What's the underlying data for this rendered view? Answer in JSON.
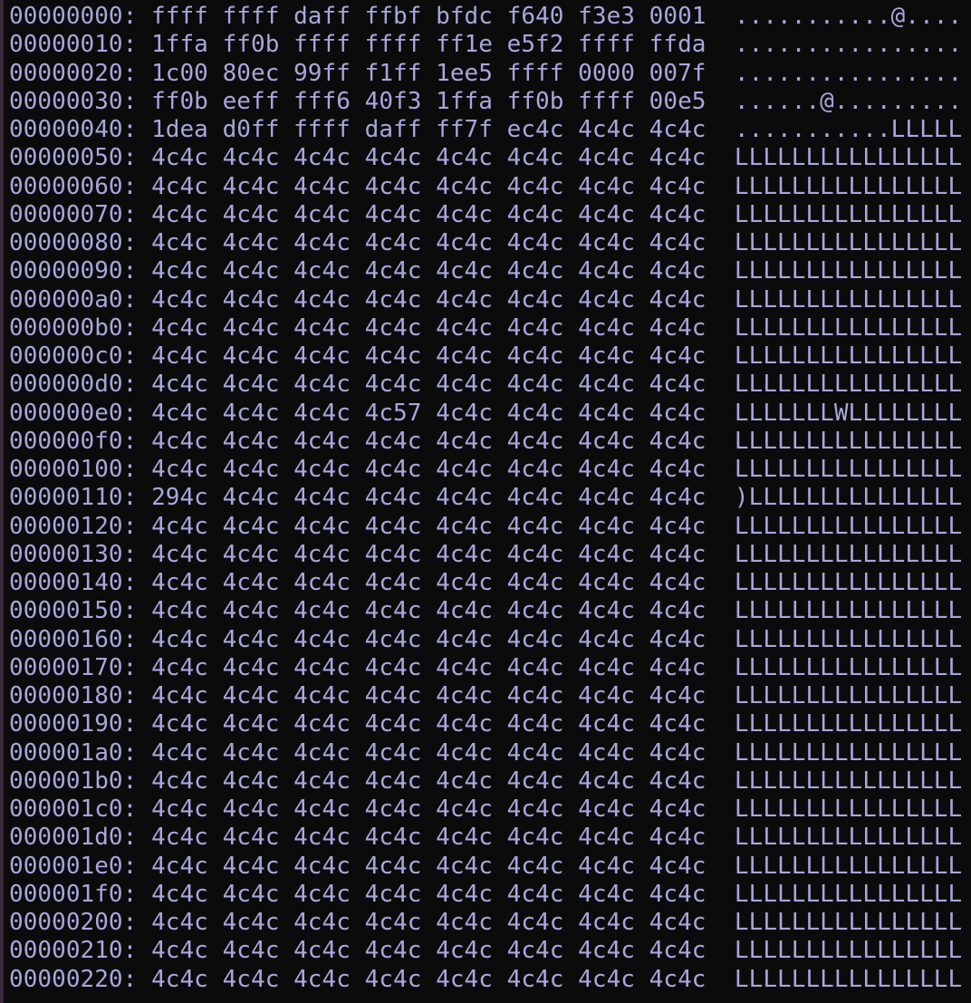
{
  "terminal": {
    "colors": {
      "background": "#0b0b0c",
      "text": "#a9a6dc"
    },
    "lines": [
      {
        "offset": "00000000:",
        "hex": "ffff ffff daff ffbf bfdc f640 f3e3 0001",
        "ascii": "...........@...."
      },
      {
        "offset": "00000010:",
        "hex": "1ffa ff0b ffff ffff ff1e e5f2 ffff ffda",
        "ascii": "................"
      },
      {
        "offset": "00000020:",
        "hex": "1c00 80ec 99ff f1ff 1ee5 ffff 0000 007f",
        "ascii": "................"
      },
      {
        "offset": "00000030:",
        "hex": "ff0b eeff fff6 40f3 1ffa ff0b ffff 00e5",
        "ascii": "......@........."
      },
      {
        "offset": "00000040:",
        "hex": "1dea d0ff ffff daff ff7f ec4c 4c4c 4c4c",
        "ascii": "...........LLLLL"
      },
      {
        "offset": "00000050:",
        "hex": "4c4c 4c4c 4c4c 4c4c 4c4c 4c4c 4c4c 4c4c",
        "ascii": "LLLLLLLLLLLLLLLL"
      },
      {
        "offset": "00000060:",
        "hex": "4c4c 4c4c 4c4c 4c4c 4c4c 4c4c 4c4c 4c4c",
        "ascii": "LLLLLLLLLLLLLLLL"
      },
      {
        "offset": "00000070:",
        "hex": "4c4c 4c4c 4c4c 4c4c 4c4c 4c4c 4c4c 4c4c",
        "ascii": "LLLLLLLLLLLLLLLL"
      },
      {
        "offset": "00000080:",
        "hex": "4c4c 4c4c 4c4c 4c4c 4c4c 4c4c 4c4c 4c4c",
        "ascii": "LLLLLLLLLLLLLLLL"
      },
      {
        "offset": "00000090:",
        "hex": "4c4c 4c4c 4c4c 4c4c 4c4c 4c4c 4c4c 4c4c",
        "ascii": "LLLLLLLLLLLLLLLL"
      },
      {
        "offset": "000000a0:",
        "hex": "4c4c 4c4c 4c4c 4c4c 4c4c 4c4c 4c4c 4c4c",
        "ascii": "LLLLLLLLLLLLLLLL"
      },
      {
        "offset": "000000b0:",
        "hex": "4c4c 4c4c 4c4c 4c4c 4c4c 4c4c 4c4c 4c4c",
        "ascii": "LLLLLLLLLLLLLLLL"
      },
      {
        "offset": "000000c0:",
        "hex": "4c4c 4c4c 4c4c 4c4c 4c4c 4c4c 4c4c 4c4c",
        "ascii": "LLLLLLLLLLLLLLLL"
      },
      {
        "offset": "000000d0:",
        "hex": "4c4c 4c4c 4c4c 4c4c 4c4c 4c4c 4c4c 4c4c",
        "ascii": "LLLLLLLLLLLLLLLL"
      },
      {
        "offset": "000000e0:",
        "hex": "4c4c 4c4c 4c4c 4c57 4c4c 4c4c 4c4c 4c4c",
        "ascii": "LLLLLLLWLLLLLLLL"
      },
      {
        "offset": "000000f0:",
        "hex": "4c4c 4c4c 4c4c 4c4c 4c4c 4c4c 4c4c 4c4c",
        "ascii": "LLLLLLLLLLLLLLLL"
      },
      {
        "offset": "00000100:",
        "hex": "4c4c 4c4c 4c4c 4c4c 4c4c 4c4c 4c4c 4c4c",
        "ascii": "LLLLLLLLLLLLLLLL"
      },
      {
        "offset": "00000110:",
        "hex": "294c 4c4c 4c4c 4c4c 4c4c 4c4c 4c4c 4c4c",
        "ascii": ")LLLLLLLLLLLLLLL"
      },
      {
        "offset": "00000120:",
        "hex": "4c4c 4c4c 4c4c 4c4c 4c4c 4c4c 4c4c 4c4c",
        "ascii": "LLLLLLLLLLLLLLLL"
      },
      {
        "offset": "00000130:",
        "hex": "4c4c 4c4c 4c4c 4c4c 4c4c 4c4c 4c4c 4c4c",
        "ascii": "LLLLLLLLLLLLLLLL"
      },
      {
        "offset": "00000140:",
        "hex": "4c4c 4c4c 4c4c 4c4c 4c4c 4c4c 4c4c 4c4c",
        "ascii": "LLLLLLLLLLLLLLLL"
      },
      {
        "offset": "00000150:",
        "hex": "4c4c 4c4c 4c4c 4c4c 4c4c 4c4c 4c4c 4c4c",
        "ascii": "LLLLLLLLLLLLLLLL"
      },
      {
        "offset": "00000160:",
        "hex": "4c4c 4c4c 4c4c 4c4c 4c4c 4c4c 4c4c 4c4c",
        "ascii": "LLLLLLLLLLLLLLLL"
      },
      {
        "offset": "00000170:",
        "hex": "4c4c 4c4c 4c4c 4c4c 4c4c 4c4c 4c4c 4c4c",
        "ascii": "LLLLLLLLLLLLLLLL"
      },
      {
        "offset": "00000180:",
        "hex": "4c4c 4c4c 4c4c 4c4c 4c4c 4c4c 4c4c 4c4c",
        "ascii": "LLLLLLLLLLLLLLLL"
      },
      {
        "offset": "00000190:",
        "hex": "4c4c 4c4c 4c4c 4c4c 4c4c 4c4c 4c4c 4c4c",
        "ascii": "LLLLLLLLLLLLLLLL"
      },
      {
        "offset": "000001a0:",
        "hex": "4c4c 4c4c 4c4c 4c4c 4c4c 4c4c 4c4c 4c4c",
        "ascii": "LLLLLLLLLLLLLLLL"
      },
      {
        "offset": "000001b0:",
        "hex": "4c4c 4c4c 4c4c 4c4c 4c4c 4c4c 4c4c 4c4c",
        "ascii": "LLLLLLLLLLLLLLLL"
      },
      {
        "offset": "000001c0:",
        "hex": "4c4c 4c4c 4c4c 4c4c 4c4c 4c4c 4c4c 4c4c",
        "ascii": "LLLLLLLLLLLLLLLL"
      },
      {
        "offset": "000001d0:",
        "hex": "4c4c 4c4c 4c4c 4c4c 4c4c 4c4c 4c4c 4c4c",
        "ascii": "LLLLLLLLLLLLLLLL"
      },
      {
        "offset": "000001e0:",
        "hex": "4c4c 4c4c 4c4c 4c4c 4c4c 4c4c 4c4c 4c4c",
        "ascii": "LLLLLLLLLLLLLLLL"
      },
      {
        "offset": "000001f0:",
        "hex": "4c4c 4c4c 4c4c 4c4c 4c4c 4c4c 4c4c 4c4c",
        "ascii": "LLLLLLLLLLLLLLLL"
      },
      {
        "offset": "00000200:",
        "hex": "4c4c 4c4c 4c4c 4c4c 4c4c 4c4c 4c4c 4c4c",
        "ascii": "LLLLLLLLLLLLLLLL"
      },
      {
        "offset": "00000210:",
        "hex": "4c4c 4c4c 4c4c 4c4c 4c4c 4c4c 4c4c 4c4c",
        "ascii": "LLLLLLLLLLLLLLLL"
      },
      {
        "offset": "00000220:",
        "hex": "4c4c 4c4c 4c4c 4c4c 4c4c 4c4c 4c4c 4c4c",
        "ascii": "LLLLLLLLLLLLLLLL"
      }
    ]
  }
}
